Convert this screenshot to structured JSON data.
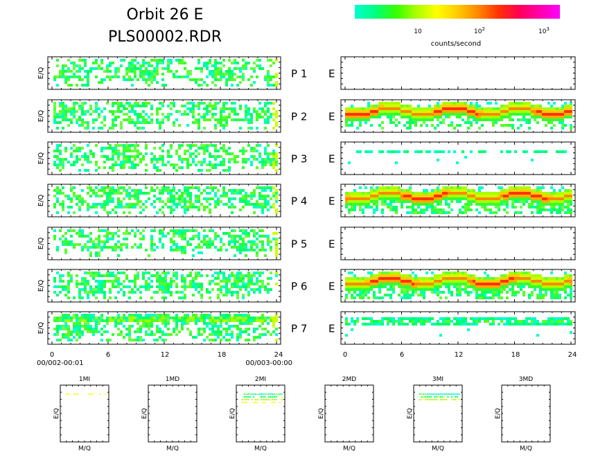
{
  "title_line1": "Orbit 26 E",
  "title_line2": "PLS00002.RDR",
  "colorbar": {
    "label": "counts/second",
    "ticks": [
      {
        "text": "10",
        "exp": ""
      },
      {
        "text": "10",
        "exp": "2"
      },
      {
        "text": "10",
        "exp": "3"
      }
    ],
    "stops": [
      "#00ffcc",
      "#00ff80",
      "#33ff00",
      "#aaff00",
      "#ffff00",
      "#ffcc00",
      "#ff8800",
      "#ff3300",
      "#ff0055",
      "#ff00aa",
      "#ff00ff"
    ]
  },
  "chart_data": [
    {
      "type": "heatmap",
      "group": "left-panels",
      "ylabel": "E/Q",
      "xlim": [
        0,
        24
      ],
      "xticks": [
        "0",
        "6",
        "12",
        "18",
        "24"
      ],
      "time_start_label": "00/002-00:01",
      "time_end_label": "00/003-00:00",
      "panels": [
        {
          "label": "P 1",
          "density": 0.55,
          "band_rows": [],
          "gap_start": 0
        },
        {
          "label": "P 2",
          "density": 0.6,
          "band_rows": [],
          "gap_start": 0
        },
        {
          "label": "P 3",
          "density": 0.6,
          "band_rows": [],
          "gap_start": 0
        },
        {
          "label": "P 4",
          "density": 0.6,
          "band_rows": [],
          "gap_start": 0
        },
        {
          "label": "P 5",
          "density": 0.55,
          "band_rows": [],
          "gap_start": 0
        },
        {
          "label": "P 6",
          "density": 0.6,
          "band_rows": [],
          "gap_start": 0
        },
        {
          "label": "P 7",
          "density": 0.65,
          "band_rows": [
            1,
            2
          ],
          "gap_start": 0
        }
      ]
    },
    {
      "type": "heatmap",
      "group": "right-panels",
      "xlim": [
        0,
        24
      ],
      "xticks": [
        "0",
        "6",
        "12",
        "18",
        "24"
      ],
      "panels": [
        {
          "label": "E",
          "kind": "empty"
        },
        {
          "label": "E",
          "kind": "band"
        },
        {
          "label": "E",
          "kind": "sparse"
        },
        {
          "label": "E",
          "kind": "band"
        },
        {
          "label": "E",
          "kind": "empty"
        },
        {
          "label": "E",
          "kind": "band"
        },
        {
          "label": "E",
          "kind": "sparse-band"
        }
      ]
    },
    {
      "type": "scatter",
      "group": "mass-panels",
      "xlabel": "M/Q",
      "ylabel": "E/Q",
      "panels": [
        {
          "title": "1MI",
          "rows": 1
        },
        {
          "title": "1MD",
          "rows": 0
        },
        {
          "title": "2MI",
          "rows": 4
        },
        {
          "title": "2MD",
          "rows": 0
        },
        {
          "title": "3MI",
          "rows": 3
        },
        {
          "title": "3MD",
          "rows": 0
        }
      ]
    }
  ]
}
